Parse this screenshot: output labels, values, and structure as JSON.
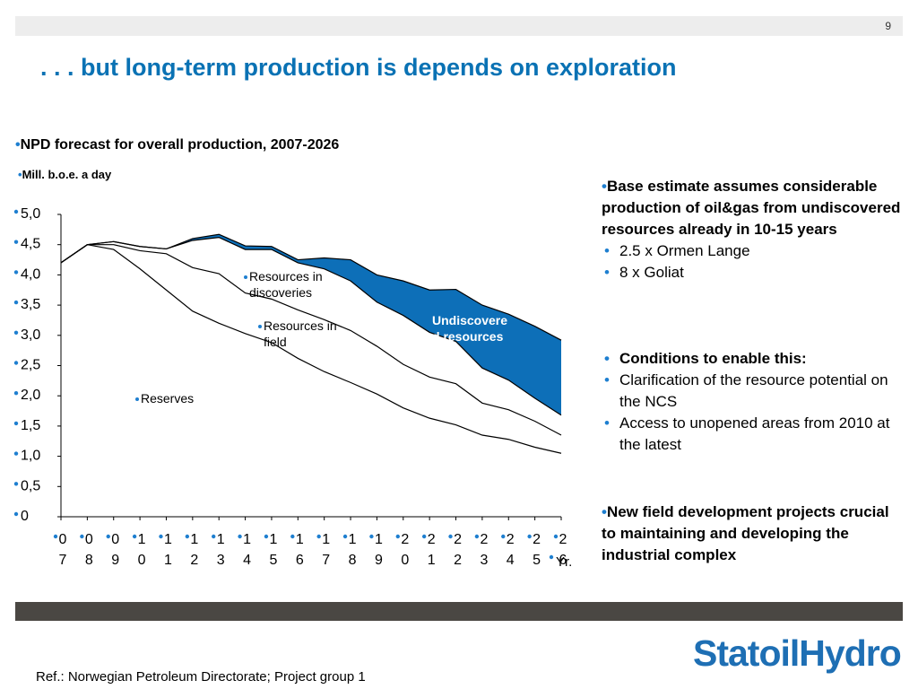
{
  "page_number": "9",
  "slide_title": ". . . but long-term production is depends on exploration",
  "chart_title": "NPD forecast for overall production, 2007-2026",
  "unit_label": "Mill. b.o.e. a day",
  "right_blocks": {
    "block1_head": "Base estimate assumes considerable production of oil&gas from undiscovered resources already in 10-15 years",
    "block1_items": [
      "2.5 x Ormen Lange",
      "8 x Goliat"
    ],
    "block2_head": "Conditions to enable this:",
    "block2_items": [
      "Clarification of the resource potential on the NCS",
      "Access to unopened areas from 2010 at the latest"
    ],
    "block3_head": "New field development projects crucial to maintaining and developing  the industrial complex"
  },
  "logo_text": "StatoilHydro",
  "reference": "Ref.: Norwegian Petroleum Directorate; Project group 1",
  "colors": {
    "title": "#0a72b4",
    "bullet": "#1e7fd0",
    "undiscovered_fill": "#0d6fb8",
    "logo": "#1e6fb4",
    "bottom_bar": "#4a4743"
  },
  "chart_data": {
    "type": "area",
    "title": "NPD forecast for overall production, 2007-2026",
    "ylabel": "Mill. b.o.e. a day",
    "ylim": [
      0,
      5
    ],
    "yticks": [
      "0",
      "0,5",
      "1,0",
      "1,5",
      "2,0",
      "2,5",
      "3,0",
      "3,5",
      "4,0",
      "4,5",
      "5,0"
    ],
    "x": [
      7,
      8,
      9,
      10,
      11,
      12,
      13,
      14,
      15,
      16,
      17,
      18,
      19,
      20,
      21,
      22,
      23,
      24,
      25,
      26
    ],
    "xtick_labels": [
      [
        "0",
        "7"
      ],
      [
        "0",
        "8"
      ],
      [
        "0",
        "9"
      ],
      [
        "1",
        "0"
      ],
      [
        "1",
        "1"
      ],
      [
        "1",
        "2"
      ],
      [
        "1",
        "3"
      ],
      [
        "1",
        "4"
      ],
      [
        "1",
        "5"
      ],
      [
        "1",
        "6"
      ],
      [
        "1",
        "7"
      ],
      [
        "1",
        "8"
      ],
      [
        "1",
        "9"
      ],
      [
        "2",
        "0"
      ],
      [
        "2",
        "1"
      ],
      [
        "2",
        "2"
      ],
      [
        "2",
        "3"
      ],
      [
        "2",
        "4"
      ],
      [
        "2",
        "5"
      ],
      [
        "2",
        "6"
      ]
    ],
    "x_unit": "Yr.",
    "series": [
      {
        "name": "Reserves",
        "values": [
          4.2,
          4.5,
          4.42,
          4.1,
          3.75,
          3.4,
          3.2,
          3.03,
          2.88,
          2.62,
          2.4,
          2.22,
          2.03,
          1.8,
          1.63,
          1.52,
          1.35,
          1.28,
          1.15,
          1.05
        ]
      },
      {
        "name": "Resources in field",
        "values": [
          4.2,
          4.5,
          4.5,
          4.4,
          4.35,
          4.12,
          4.02,
          3.7,
          3.6,
          3.42,
          3.26,
          3.08,
          2.82,
          2.52,
          2.31,
          2.2,
          1.88,
          1.77,
          1.58,
          1.35
        ]
      },
      {
        "name": "Resources in discoveries",
        "values": [
          4.2,
          4.5,
          4.55,
          4.47,
          4.43,
          4.57,
          4.62,
          4.42,
          4.42,
          4.2,
          4.1,
          3.9,
          3.55,
          3.33,
          3.05,
          2.9,
          2.46,
          2.26,
          1.96,
          1.68
        ]
      },
      {
        "name": "Undiscovered resources",
        "values": [
          4.2,
          4.5,
          4.55,
          4.47,
          4.43,
          4.6,
          4.67,
          4.48,
          4.47,
          4.25,
          4.28,
          4.25,
          4.0,
          3.9,
          3.75,
          3.76,
          3.5,
          3.35,
          3.15,
          2.92
        ]
      }
    ],
    "labels": {
      "reserves": "Reserves",
      "field": "Resources in field",
      "discoveries": "Resources in discoveries",
      "undiscovered": "Undiscovered resources"
    }
  }
}
